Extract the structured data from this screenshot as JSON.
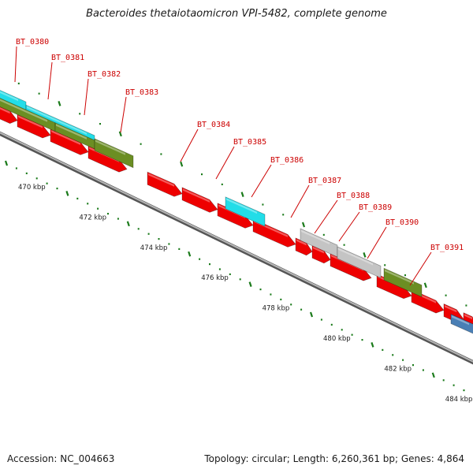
{
  "title": "Bacteroides thetaiotaomicron VPI-5482, complete genome",
  "footer": {
    "accession": "Accession: NC_004663",
    "stats": "Topology: circular; Length: 6,260,361 bp; Genes: 4,864"
  },
  "scale": {
    "tick_color": "#1a7a1a",
    "ticks": [
      {
        "pos": 470,
        "label": "470 kbp"
      },
      {
        "pos": 472,
        "label": "472 kbp"
      },
      {
        "pos": 474,
        "label": "474 kbp"
      },
      {
        "pos": 476,
        "label": "476 kbp"
      },
      {
        "pos": 478,
        "label": "478 kbp"
      },
      {
        "pos": 480,
        "label": "480 kbp"
      },
      {
        "pos": 482,
        "label": "482 kbp"
      },
      {
        "pos": 484,
        "label": "484 kbp"
      }
    ]
  },
  "colors": {
    "cds": "#ee0000",
    "feature_cyan": "#22dde8",
    "feature_olive": "#6b8e23",
    "feature_gray": "#c4c4c4",
    "feature_blue": "#4a7fb5",
    "backbone": "#888888",
    "label": "#cc0000"
  },
  "gene_labels": [
    "BT_0380",
    "BT_0381",
    "BT_0382",
    "BT_0383",
    "BT_0384",
    "BT_0385",
    "BT_0386",
    "BT_0387",
    "BT_0388",
    "BT_0389",
    "BT_0390",
    "BT_0391"
  ]
}
